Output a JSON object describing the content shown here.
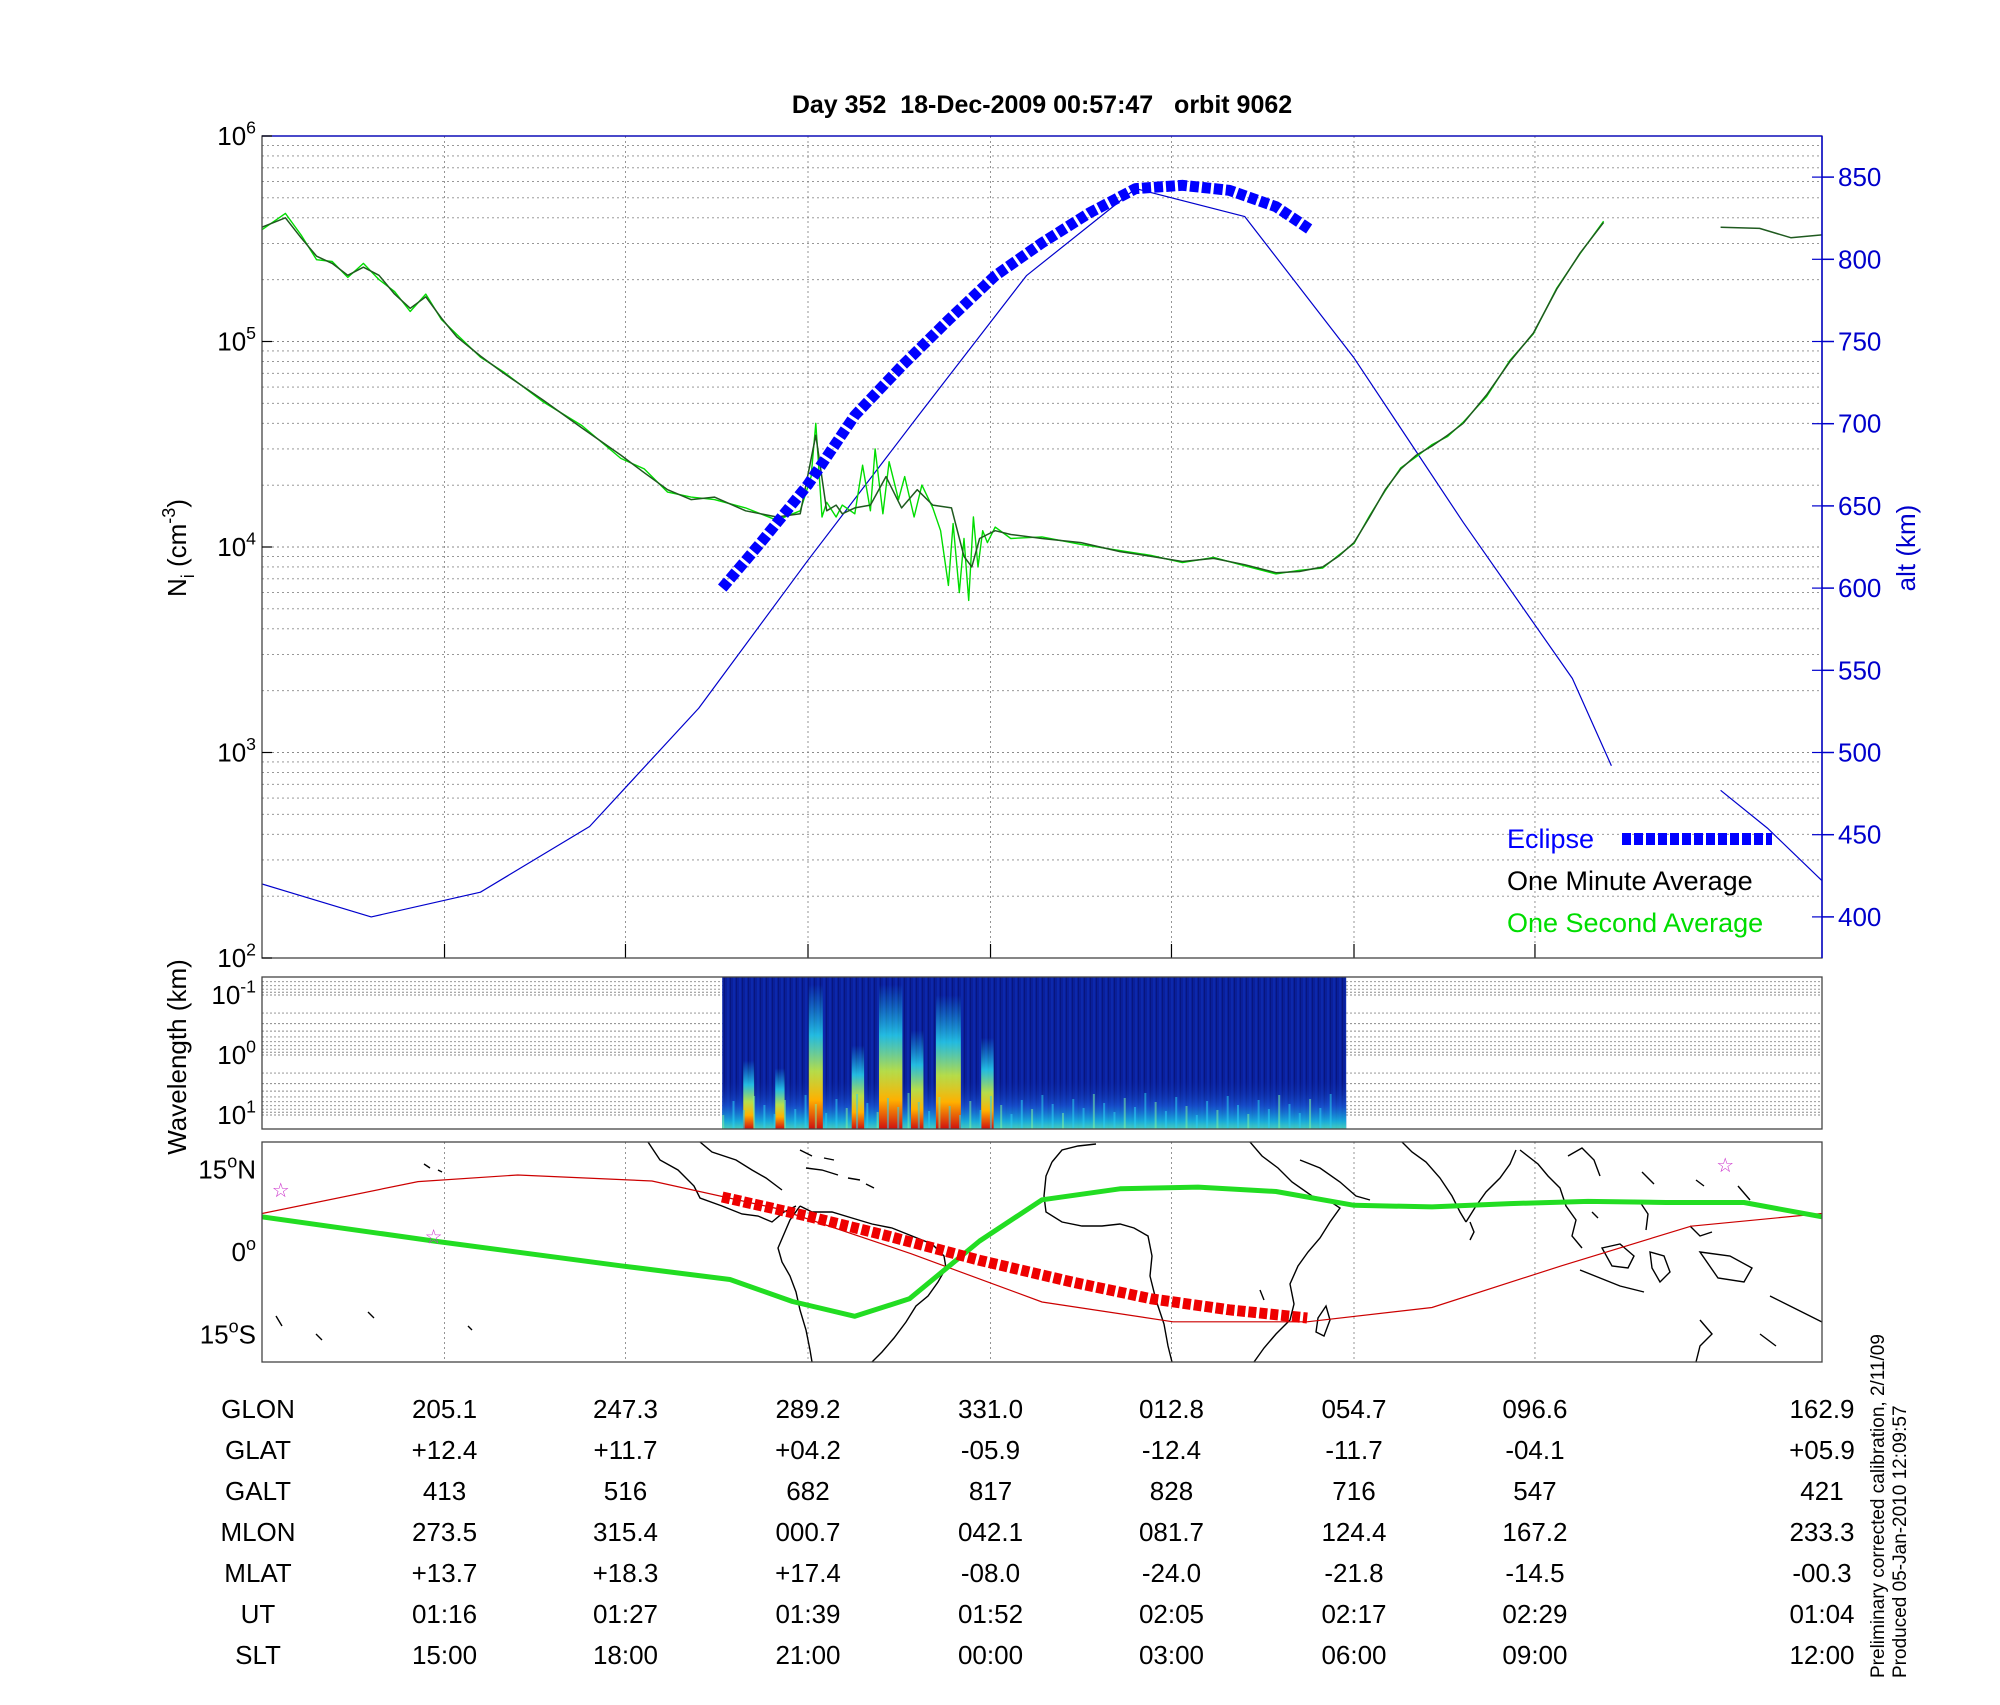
{
  "title": "Day 352  18-Dec-2009 00:57:47   orbit 9062",
  "colors": {
    "density_one_minute": "#000000",
    "density_one_second": "#00dd00",
    "altitude": "#0000cc",
    "eclipse": "#0000ff",
    "track": "#cc0000",
    "magnetic_equator": "#22dd22",
    "grid": "#aaaaaa",
    "star": "#cc33cc"
  },
  "chart_data": [
    {
      "type": "line",
      "panel": "density",
      "ylabel": "N_i (cm^-3)",
      "y2label": "alt (km)",
      "yscale": "log",
      "ylim": [
        100,
        1000000
      ],
      "yticks": [
        "10^2",
        "10^3",
        "10^4",
        "10^5",
        "10^6"
      ],
      "y2lim": [
        375,
        875
      ],
      "y2ticks": [
        "400",
        "450",
        "500",
        "550",
        "600",
        "650",
        "700",
        "750",
        "800",
        "850"
      ],
      "xlim": [
        0,
        100
      ],
      "x_label_positions": [
        11.7,
        23.3,
        35,
        46.7,
        58.3,
        70,
        81.6,
        100
      ],
      "grid": true,
      "legend_position": "bottom-right",
      "legend": [
        {
          "label": "Eclipse",
          "color": "#0000ff",
          "style": "dashed-thick"
        },
        {
          "label": "One Minute Average",
          "color": "#000000",
          "style": "solid"
        },
        {
          "label": "One Second Average",
          "color": "#00dd00",
          "style": "solid"
        }
      ],
      "series": [
        {
          "name": "One Minute Average",
          "axis": "left",
          "x": [
            0,
            1.5,
            2.5,
            3.5,
            4.5,
            5.5,
            6.5,
            7.5,
            8.5,
            9.5,
            10.5,
            11.5,
            12.5,
            14,
            15.5,
            18,
            20.5,
            23,
            24.5,
            26,
            27.5,
            29,
            31,
            33,
            34.5,
            35.5,
            36.2,
            36.8,
            37.2,
            38,
            39,
            40,
            41,
            42,
            43,
            44.2,
            45,
            45.5,
            46,
            46.5,
            47,
            48,
            50,
            52.5,
            55,
            57,
            59,
            61,
            63,
            65,
            66.5,
            68,
            69,
            70,
            71,
            72,
            73,
            74,
            75,
            76,
            77,
            78.5,
            80,
            81.5,
            83,
            84.5,
            86
          ],
          "y": [
            360000,
            400000,
            320000,
            260000,
            240000,
            210000,
            230000,
            210000,
            170000,
            145000,
            165000,
            130000,
            105000,
            85000,
            70000,
            52000,
            38000,
            28000,
            23000,
            19000,
            17000,
            17500,
            15000,
            14000,
            14500,
            35000,
            15000,
            16000,
            14500,
            15500,
            16000,
            22000,
            15500,
            19000,
            16000,
            15500,
            9000,
            8000,
            11000,
            11500,
            12000,
            11500,
            11000,
            10500,
            9500,
            9000,
            8500,
            8800,
            8200,
            7500,
            7600,
            8000,
            9000,
            10500,
            14000,
            19000,
            24000,
            28000,
            31000,
            35000,
            40000,
            55000,
            80000,
            110000,
            180000,
            270000,
            380000
          ]
        },
        {
          "name": "One Minute Average (segment 2)",
          "axis": "left",
          "x": [
            93.5,
            96,
            98,
            100
          ],
          "y": [
            360000,
            355000,
            320000,
            330000
          ]
        },
        {
          "name": "One Second Average",
          "axis": "left",
          "x": [
            0,
            1.5,
            2.5,
            3.5,
            4.5,
            5.5,
            6.5,
            7.5,
            8.5,
            9.5,
            10.5,
            11.5,
            12.5,
            14,
            15.5,
            18,
            20.5,
            23,
            24.5,
            26,
            27.5,
            29,
            31,
            33,
            34.5,
            35.2,
            35.5,
            35.9,
            36.2,
            36.8,
            37.2,
            38,
            38.5,
            39,
            39.3,
            39.8,
            40.2,
            40.8,
            41.2,
            41.8,
            42.3,
            43,
            43.5,
            44,
            44.3,
            44.7,
            45,
            45.3,
            45.6,
            45.9,
            46.2,
            46.5,
            47,
            48,
            50,
            52.5,
            55,
            57,
            59,
            61,
            63,
            65,
            66.5,
            68,
            69,
            70,
            71,
            72,
            73,
            74,
            75,
            76,
            77,
            78.5,
            80,
            81.5,
            83,
            84.5,
            86
          ],
          "y": [
            350000,
            420000,
            330000,
            250000,
            245000,
            205000,
            240000,
            200000,
            175000,
            140000,
            170000,
            128000,
            108000,
            84000,
            71000,
            51000,
            39000,
            27000,
            24000,
            18500,
            17500,
            17000,
            15500,
            13500,
            15000,
            22000,
            40000,
            14000,
            16500,
            14000,
            16000,
            14500,
            25000,
            15000,
            30000,
            14500,
            26000,
            17000,
            22000,
            14000,
            20000,
            15500,
            12000,
            6500,
            13000,
            6000,
            11000,
            5500,
            14000,
            8000,
            12000,
            10500,
            12500,
            11000,
            11200,
            10300,
            9600,
            9100,
            8400,
            8900,
            8100,
            7400,
            7700,
            7900,
            9100,
            10400,
            14200,
            18800,
            24300,
            27500,
            31500,
            34500,
            40500,
            54000,
            81000,
            109000,
            182000,
            268000,
            385000
          ]
        },
        {
          "name": "alt (km)",
          "axis": "right",
          "x": [
            0,
            7,
            14,
            21,
            28,
            35,
            42,
            49,
            56,
            63,
            70,
            77,
            84,
            86.5
          ],
          "y": [
            420,
            400,
            415,
            455,
            527,
            617,
            704,
            790,
            843,
            826,
            740,
            640,
            545,
            492
          ]
        },
        {
          "name": "alt (km) (segment 2)",
          "axis": "right",
          "x": [
            93.5,
            96.5,
            100
          ],
          "y": [
            477,
            454,
            422
          ]
        },
        {
          "name": "Eclipse",
          "axis": "right",
          "x": [
            29.5,
            32,
            35,
            38,
            41,
            44,
            47,
            50,
            53,
            56,
            59,
            62,
            65,
            67.2
          ],
          "y": [
            600,
            628,
            663,
            705,
            735,
            763,
            790,
            810,
            828,
            843,
            845,
            842,
            832,
            818
          ]
        }
      ]
    },
    {
      "type": "heatmap",
      "panel": "spectrogram",
      "ylabel": "Wavelength (km)",
      "yscale": "log",
      "yticks": [
        "10^-1",
        "10^0",
        "10^1"
      ],
      "xlim": [
        0,
        100
      ],
      "data_xrange": [
        29.5,
        69.5
      ],
      "colormap": "jet"
    },
    {
      "type": "line",
      "panel": "ground_track",
      "ylim": [
        -20,
        20
      ],
      "ytick_labels": [
        "15oN",
        "0o",
        "15oS"
      ],
      "ytick_values": [
        15,
        0,
        -15
      ],
      "xlim": [
        0,
        100
      ],
      "series": [
        {
          "name": "orbit track",
          "x": [
            0,
            10,
            16.4,
            25,
            33,
            41.6,
            50,
            58.4,
            67,
            75,
            83.3,
            91.6,
            100
          ],
          "y": [
            7,
            12.8,
            14,
            12.9,
            7.9,
            -0.3,
            -9.1,
            -12.7,
            -12.7,
            -10.1,
            -2.5,
            4.7,
            7
          ]
        },
        {
          "name": "eclipse track",
          "x": [
            29.5,
            35,
            40,
            46,
            52,
            57,
            62,
            67
          ],
          "y": [
            10,
            6.5,
            3,
            -1.5,
            -5.5,
            -8.5,
            -10.5,
            -12
          ]
        },
        {
          "name": "magnetic equator",
          "x": [
            0,
            11,
            23,
            30,
            34,
            38,
            41.5,
            46,
            50,
            55,
            60,
            65,
            70,
            75,
            80,
            85,
            90,
            95,
            100
          ],
          "y": [
            6.4,
            2,
            -2.5,
            -5,
            -9,
            -11.7,
            -8.5,
            2,
            9.5,
            11.5,
            11.8,
            11,
            8.5,
            8.2,
            8.8,
            9.2,
            9,
            9,
            6.4
          ]
        },
        {
          "name": "points",
          "x": [
            1.2,
            11,
            93.8
          ],
          "y": [
            11.5,
            3,
            16
          ]
        }
      ]
    }
  ],
  "table": {
    "row_labels": [
      "GLON",
      "GLAT",
      "GALT",
      "MLON",
      "MLAT",
      "UT",
      "SLT"
    ],
    "rows": [
      [
        "205.1",
        "247.3",
        "289.2",
        "331.0",
        "012.8",
        "054.7",
        "096.6",
        "162.9"
      ],
      [
        "+12.4",
        "+11.7",
        "+04.2",
        "-05.9",
        "-12.4",
        "-11.7",
        "-04.1",
        "+05.9"
      ],
      [
        "413",
        "516",
        "682",
        "817",
        "828",
        "716",
        "547",
        "421"
      ],
      [
        "273.5",
        "315.4",
        "000.7",
        "042.1",
        "081.7",
        "124.4",
        "167.2",
        "233.3"
      ],
      [
        "+13.7",
        "+18.3",
        "+17.4",
        "-08.0",
        "-24.0",
        "-21.8",
        "-14.5",
        "-00.3"
      ],
      [
        "01:16",
        "01:27",
        "01:39",
        "01:52",
        "02:05",
        "02:17",
        "02:29",
        "01:04"
      ],
      [
        "15:00",
        "18:00",
        "21:00",
        "00:00",
        "03:00",
        "06:00",
        "09:00",
        "12:00"
      ]
    ]
  },
  "footer": {
    "line1": "Preliminary corrected calibration, 2/11/09",
    "line2": "Produced 05-Jan-2010 12:09:57"
  }
}
